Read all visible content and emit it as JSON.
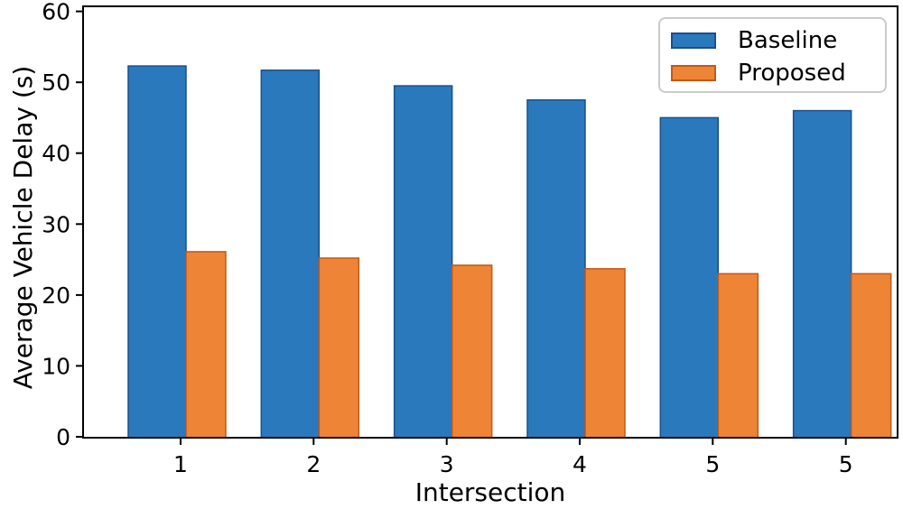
{
  "chart_data": {
    "type": "bar",
    "categories": [
      "1",
      "2",
      "3",
      "4",
      "5",
      "5"
    ],
    "series": [
      {
        "name": "Baseline",
        "color": "#2b79bd",
        "edge_color": "#1a4f8a",
        "values": [
          52.3,
          51.7,
          49.5,
          47.5,
          45.0,
          46.0
        ]
      },
      {
        "name": "Proposed",
        "color": "#ee8435",
        "edge_color": "#c1581a",
        "values": [
          26.1,
          25.2,
          24.2,
          23.7,
          23.0,
          23.0
        ]
      }
    ],
    "title": "",
    "xlabel": "Intersection",
    "ylabel": "Average Vehicle Delay (s)",
    "ylim": [
      0,
      60
    ],
    "yticks": [
      0,
      10,
      20,
      30,
      40,
      50,
      60
    ],
    "legend_position": "upper right",
    "grid": false,
    "axis_color": "#000000",
    "background_color": "#ffffff"
  }
}
